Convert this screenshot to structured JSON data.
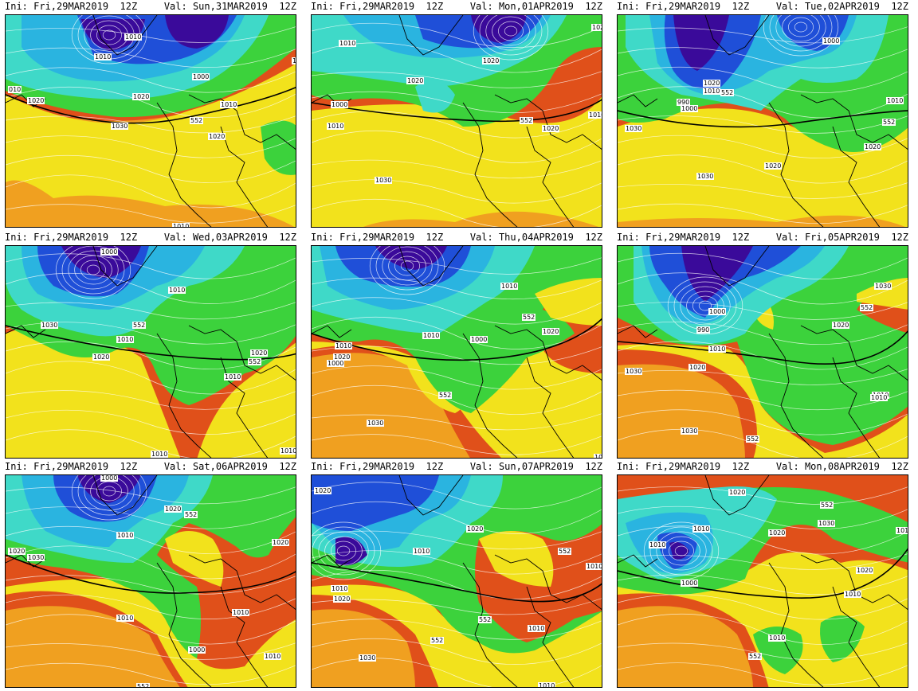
{
  "init_label": "Ini: Fri,29MAR2019  12Z",
  "colors": {
    "deep_low": "#3a0a9a",
    "low": "#1f4fd8",
    "mid_low": "#2ab4e0",
    "cyan": "#3fd9c8",
    "green": "#3cd23c",
    "yellow": "#f2e21c",
    "orange": "#f0a020",
    "red": "#e0501a",
    "contour": "#ffffff",
    "coast": "#000000"
  },
  "panels": [
    {
      "valid": "Val: Sun,31MAR2019  12Z",
      "labels": [
        "1010",
        "1010",
        "1020",
        "010",
        "1020",
        "1000",
        "1010",
        "1030",
        "552",
        "1020",
        "1020",
        "1010"
      ]
    },
    {
      "valid": "Val: Mon,01APR2019  12Z",
      "labels": [
        "1020",
        "1010",
        "1020",
        "1000",
        "1010",
        "1020",
        "552",
        "1020",
        "1010",
        "1030"
      ]
    },
    {
      "valid": "Val: Tue,02APR2019  12Z",
      "labels": [
        "1000",
        "1020",
        "990",
        "1010",
        "552",
        "1010",
        "1000",
        "1030",
        "1020",
        "552",
        "1020",
        "1030"
      ]
    },
    {
      "valid": "Val: Wed,03APR2019  12Z",
      "labels": [
        "1000",
        "1010",
        "1030",
        "552",
        "1010",
        "1020",
        "1020",
        "552",
        "1010",
        "1010",
        "1010"
      ]
    },
    {
      "valid": "Val: Thu,04APR2019  12Z",
      "labels": [
        "1010",
        "552",
        "1020",
        "1010",
        "1000",
        "1010",
        "1020",
        "1000",
        "552",
        "1030",
        "1010"
      ]
    },
    {
      "valid": "Val: Fri,05APR2019  12Z",
      "labels": [
        "1000",
        "990",
        "1010",
        "552",
        "1030",
        "1020",
        "1020",
        "1030",
        "1010",
        "552",
        "1010",
        "1030"
      ]
    },
    {
      "valid": "Val: Sat,06APR2019  12Z",
      "labels": [
        "1000",
        "1020",
        "552",
        "1010",
        "1020",
        "1030",
        "1010",
        "1010",
        "1000",
        "1010",
        "552",
        "1020"
      ]
    },
    {
      "valid": "Val: Sun,07APR2019  12Z",
      "labels": [
        "1020",
        "552",
        "1010",
        "1010",
        "1020",
        "1010",
        "552",
        "1010",
        "552",
        "1030",
        "1010",
        "1020"
      ]
    },
    {
      "valid": "Val: Mon,08APR2019  12Z",
      "labels": [
        "1020",
        "552",
        "1030",
        "1010",
        "1020",
        "1000",
        "1010",
        "1020",
        "1010",
        "1010",
        "552",
        "1010"
      ]
    }
  ]
}
